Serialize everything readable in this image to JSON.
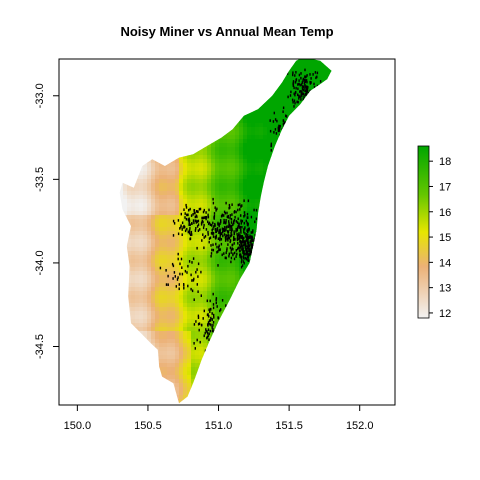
{
  "chart_data": {
    "type": "heatmap",
    "title": "Noisy Miner vs Annual Mean Temp",
    "xlabel": "",
    "ylabel": "",
    "xlim": [
      149.87,
      152.25
    ],
    "ylim": [
      -34.85,
      -32.78
    ],
    "x_ticks": [
      150.0,
      150.5,
      151.0,
      151.5,
      152.0
    ],
    "x_tick_labels": [
      "150.0",
      "150.5",
      "151.0",
      "151.5",
      "152.0"
    ],
    "y_ticks": [
      -33.0,
      -33.5,
      -34.0,
      -34.5
    ],
    "y_tick_labels": [
      "-33.0",
      "-33.5",
      "-34.0",
      "-34.5"
    ],
    "legend": {
      "placement": "right",
      "range": [
        11.8,
        18.6
      ],
      "ticks": [
        12,
        13,
        14,
        15,
        16,
        17,
        18
      ],
      "tick_labels": [
        "12",
        "13",
        "14",
        "15",
        "16",
        "17",
        "18"
      ],
      "colors": [
        "#f2f2f2",
        "#ecb176",
        "#e6e600",
        "#63c600",
        "#00a600"
      ]
    },
    "raster": {
      "name": "Annual Mean Temp",
      "region_outline_lonlat": [
        [
          151.55,
          -32.79
        ],
        [
          151.6,
          -32.77
        ],
        [
          151.72,
          -32.79
        ],
        [
          151.8,
          -32.85
        ],
        [
          151.77,
          -32.9
        ],
        [
          151.72,
          -32.93
        ],
        [
          151.65,
          -32.97
        ],
        [
          151.58,
          -33.05
        ],
        [
          151.5,
          -33.12
        ],
        [
          151.45,
          -33.2
        ],
        [
          151.4,
          -33.3
        ],
        [
          151.35,
          -33.42
        ],
        [
          151.32,
          -33.52
        ],
        [
          151.3,
          -33.6
        ],
        [
          151.28,
          -33.7
        ],
        [
          151.27,
          -33.8
        ],
        [
          151.25,
          -33.88
        ],
        [
          151.22,
          -34.0
        ],
        [
          151.15,
          -34.1
        ],
        [
          151.08,
          -34.22
        ],
        [
          151.0,
          -34.35
        ],
        [
          150.93,
          -34.48
        ],
        [
          150.88,
          -34.58
        ],
        [
          150.85,
          -34.65
        ],
        [
          150.82,
          -34.72
        ],
        [
          150.78,
          -34.8
        ],
        [
          150.72,
          -34.84
        ],
        [
          150.7,
          -34.78
        ],
        [
          150.68,
          -34.72
        ],
        [
          150.6,
          -34.68
        ],
        [
          150.58,
          -34.62
        ],
        [
          150.57,
          -34.52
        ],
        [
          150.52,
          -34.48
        ],
        [
          150.45,
          -34.42
        ],
        [
          150.38,
          -34.36
        ],
        [
          150.36,
          -34.2
        ],
        [
          150.37,
          -34.02
        ],
        [
          150.35,
          -33.9
        ],
        [
          150.38,
          -33.78
        ],
        [
          150.32,
          -33.68
        ],
        [
          150.3,
          -33.58
        ],
        [
          150.32,
          -33.52
        ],
        [
          150.4,
          -33.55
        ],
        [
          150.46,
          -33.42
        ],
        [
          150.53,
          -33.38
        ],
        [
          150.62,
          -33.42
        ],
        [
          150.72,
          -33.37
        ],
        [
          150.82,
          -33.35
        ],
        [
          150.92,
          -33.3
        ],
        [
          151.02,
          -33.25
        ],
        [
          151.1,
          -33.2
        ],
        [
          151.18,
          -33.12
        ],
        [
          151.28,
          -33.08
        ],
        [
          151.38,
          -33.0
        ],
        [
          151.45,
          -32.92
        ],
        [
          151.5,
          -32.85
        ]
      ]
    },
    "points": {
      "name": "Noisy Miner",
      "color": "#000000",
      "clusters": [
        {
          "lon": 151.1,
          "lat": -33.82,
          "spread_lon": 0.17,
          "spread_lat": 0.14,
          "n": 320
        },
        {
          "lon": 151.2,
          "lat": -33.9,
          "spread_lon": 0.06,
          "spread_lat": 0.08,
          "n": 140
        },
        {
          "lon": 150.85,
          "lat": -33.75,
          "spread_lon": 0.12,
          "spread_lat": 0.1,
          "n": 110
        },
        {
          "lon": 151.6,
          "lat": -32.95,
          "spread_lon": 0.1,
          "spread_lat": 0.1,
          "n": 120
        },
        {
          "lon": 151.45,
          "lat": -33.2,
          "spread_lon": 0.08,
          "spread_lat": 0.08,
          "n": 70
        },
        {
          "lon": 150.95,
          "lat": -34.35,
          "spread_lon": 0.1,
          "spread_lat": 0.14,
          "n": 90
        },
        {
          "lon": 150.75,
          "lat": -34.05,
          "spread_lon": 0.12,
          "spread_lat": 0.1,
          "n": 45
        }
      ]
    }
  }
}
